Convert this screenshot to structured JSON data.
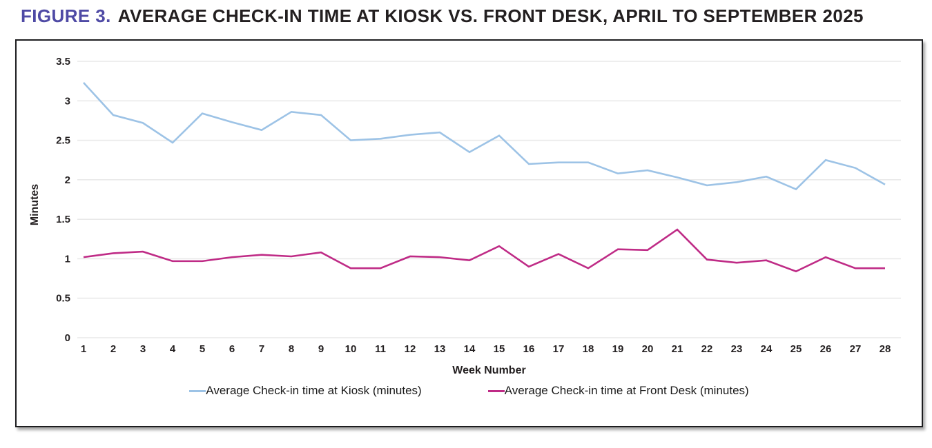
{
  "figure": {
    "label": "FIGURE 3.",
    "title": "AVERAGE CHECK-IN TIME AT KIOSK VS. FRONT DESK, APRIL TO SEPTEMBER 2025",
    "label_color": "#4f4aa5",
    "title_color": "#231f20"
  },
  "chart_data": {
    "type": "line",
    "title": "Average check-in time at kiosk vs. front desk, April to September 2025",
    "xlabel": "Week Number",
    "ylabel": "Minutes",
    "x": [
      1,
      2,
      3,
      4,
      5,
      6,
      7,
      8,
      9,
      10,
      11,
      12,
      13,
      14,
      15,
      16,
      17,
      18,
      19,
      20,
      21,
      22,
      23,
      24,
      25,
      26,
      27,
      28
    ],
    "xlim": [
      1,
      28
    ],
    "ylim": [
      0,
      3.5
    ],
    "yticks": [
      0,
      0.5,
      1,
      1.5,
      2,
      2.5,
      3,
      3.5
    ],
    "grid": true,
    "legend_position": "bottom",
    "grid_color": "#e9e9e9",
    "series": [
      {
        "name": "Average Check-in time at Kiosk (minutes)",
        "color": "#9dc3e6",
        "values": [
          3.23,
          2.82,
          2.72,
          2.47,
          2.84,
          2.73,
          2.63,
          2.86,
          2.82,
          2.5,
          2.52,
          2.57,
          2.6,
          2.35,
          2.56,
          2.2,
          2.22,
          2.22,
          2.08,
          2.12,
          2.03,
          1.93,
          1.97,
          2.04,
          1.88,
          2.25,
          2.15,
          1.94
        ]
      },
      {
        "name": "Average Check-in time at Front Desk (minutes)",
        "color": "#bf2b86",
        "values": [
          1.02,
          1.07,
          1.09,
          0.97,
          0.97,
          1.02,
          1.05,
          1.03,
          1.08,
          0.88,
          0.88,
          1.03,
          1.02,
          0.98,
          1.16,
          0.9,
          1.06,
          0.88,
          1.12,
          1.11,
          1.37,
          0.99,
          0.95,
          0.98,
          0.84,
          1.02,
          0.88,
          0.88
        ]
      }
    ]
  }
}
